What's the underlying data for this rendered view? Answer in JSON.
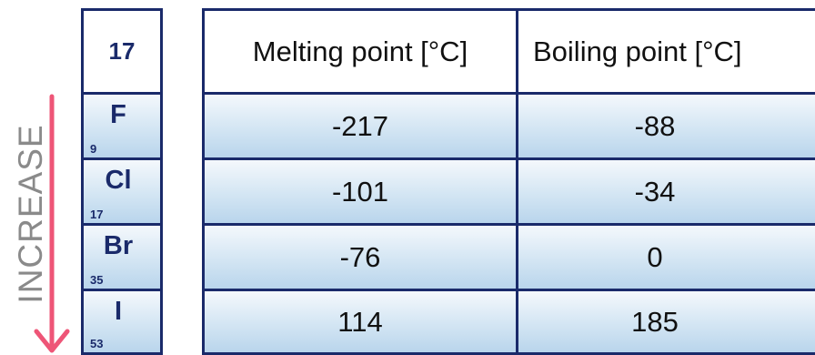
{
  "direction_label": "INCREASE",
  "group": {
    "number": "17",
    "elements": [
      {
        "symbol": "F",
        "atomic_number": "9"
      },
      {
        "symbol": "Cl",
        "atomic_number": "17"
      },
      {
        "symbol": "Br",
        "atomic_number": "35"
      },
      {
        "symbol": "I",
        "atomic_number": "53"
      }
    ]
  },
  "table": {
    "headers": [
      "Melting point [°C]",
      "Boiling point [°C]"
    ],
    "rows": [
      [
        "-217",
        "-88"
      ],
      [
        "-101",
        "-34"
      ],
      [
        "-76",
        "0"
      ],
      [
        "114",
        "185"
      ]
    ]
  },
  "colors": {
    "border": "#1a2a6a",
    "arrow": "#ee5577",
    "label": "#8a8a8a",
    "cell_light": "#f4f8fc",
    "cell_dark": "#b9d5ec"
  }
}
